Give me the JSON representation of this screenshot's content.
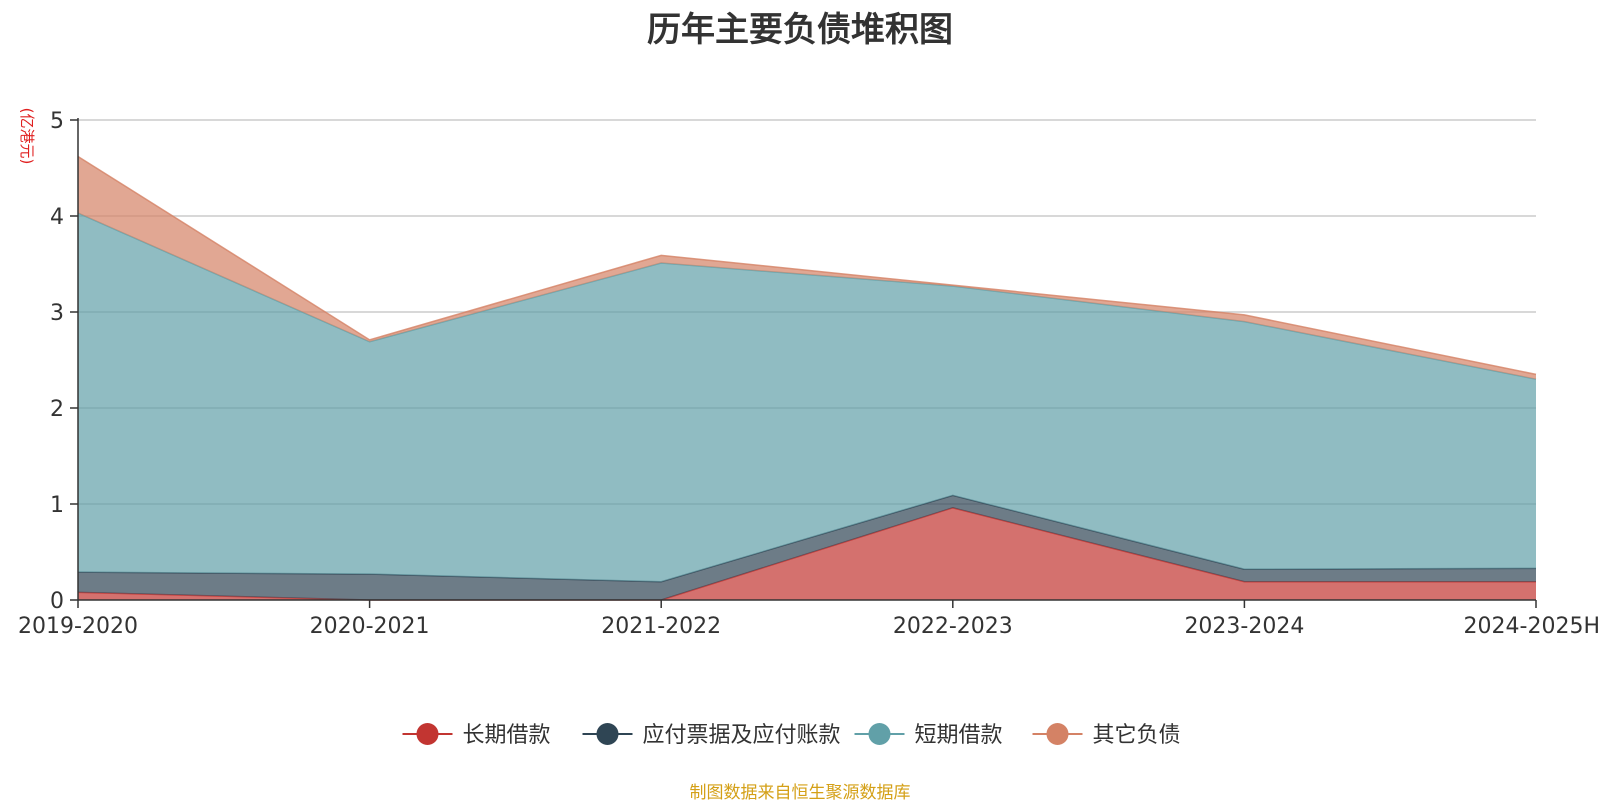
{
  "chart_data": {
    "type": "area",
    "stacked": true,
    "title": "历年主要负债堆积图",
    "unit_label": "(亿港元)",
    "categories": [
      "2019-2020",
      "2020-2021",
      "2021-2022",
      "2022-2023",
      "2023-2024",
      "2024-2025H"
    ],
    "ylim": [
      0,
      5
    ],
    "y_ticks": [
      0,
      1,
      2,
      3,
      4,
      5
    ],
    "grid": true,
    "legend_position": "bottom",
    "series": [
      {
        "name": "长期借款",
        "color": "#c23531",
        "values": [
          0.08,
          0.0,
          0.0,
          0.96,
          0.19,
          0.19
        ]
      },
      {
        "name": "应付票据及应付账款",
        "color": "#2f4554",
        "values": [
          0.21,
          0.27,
          0.19,
          0.13,
          0.13,
          0.14
        ]
      },
      {
        "name": "短期借款",
        "color": "#61a0a8",
        "values": [
          3.74,
          2.42,
          3.32,
          2.18,
          2.58,
          1.97
        ]
      },
      {
        "name": "其它负债",
        "color": "#d48265",
        "values": [
          0.59,
          0.02,
          0.08,
          0.01,
          0.07,
          0.05
        ]
      }
    ],
    "source_note": "制图数据来自恒生聚源数据库"
  }
}
